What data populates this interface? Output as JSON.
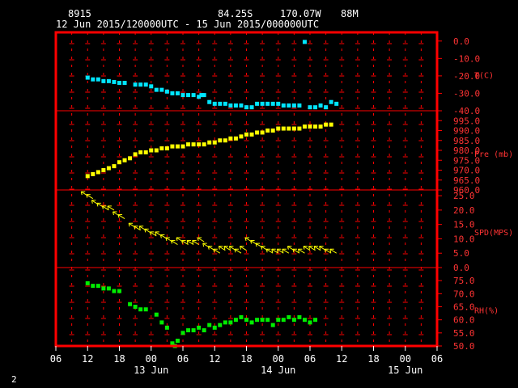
{
  "header": {
    "station_id": "8915",
    "latitude": "84.25S",
    "longitude": "170.07W",
    "elevation": "88M",
    "time_range": "12 Jun 2015/120000UTC - 15 Jun 2015/000000UTC"
  },
  "page_number": "2",
  "chart_data": {
    "type": "scatter",
    "x_unit": "hours since 12 Jun 2015 06 UTC",
    "x_range": [
      0,
      72
    ],
    "x_tick_labels": [
      "06",
      "12",
      "18",
      "00",
      "06",
      "12",
      "18",
      "00",
      "06",
      "12",
      "18",
      "00",
      "06"
    ],
    "date_labels": [
      {
        "x": 18,
        "label": "13 Jun"
      },
      {
        "x": 42,
        "label": "14 Jun"
      },
      {
        "x": 66,
        "label": "15 Jun"
      }
    ],
    "colors": {
      "frame": "#ff0000",
      "grid": "#ff0000",
      "temperature": "#00e5ff",
      "pressure": "#ffff00",
      "wind": "#ffff00",
      "rh": "#00ee00",
      "axis_text": "#ff3333",
      "tick_text": "#ffffff"
    },
    "panels": [
      {
        "name": "temperature",
        "label": "T(C)",
        "ylim": [
          -40,
          5
        ],
        "tick_values": [
          0,
          -10,
          -20,
          -30,
          -40
        ],
        "tick_labels": [
          "0.0",
          "-10.0",
          "-20.0",
          "-30.0",
          "-40.0"
        ],
        "points": [
          [
            6,
            -21
          ],
          [
            7,
            -22
          ],
          [
            8,
            -22
          ],
          [
            9,
            -23
          ],
          [
            10,
            -23
          ],
          [
            11,
            -23.5
          ],
          [
            12,
            -24
          ],
          [
            13,
            -24
          ],
          [
            15,
            -25
          ],
          [
            16,
            -25
          ],
          [
            17,
            -25
          ],
          [
            18,
            -26
          ],
          [
            19,
            -28
          ],
          [
            20,
            -28
          ],
          [
            21,
            -29
          ],
          [
            22,
            -30
          ],
          [
            23,
            -30
          ],
          [
            24,
            -31
          ],
          [
            25,
            -31
          ],
          [
            26,
            -31
          ],
          [
            27,
            -32
          ],
          [
            27.5,
            -31
          ],
          [
            28,
            -31
          ],
          [
            29,
            -35
          ],
          [
            30,
            -36
          ],
          [
            31,
            -36
          ],
          [
            32,
            -36
          ],
          [
            33,
            -37
          ],
          [
            34,
            -37
          ],
          [
            35,
            -37
          ],
          [
            36,
            -38
          ],
          [
            37,
            -38
          ],
          [
            38,
            -36
          ],
          [
            39,
            -36
          ],
          [
            40,
            -36
          ],
          [
            41,
            -36
          ],
          [
            42,
            -36
          ],
          [
            43,
            -37
          ],
          [
            44,
            -37
          ],
          [
            45,
            -37
          ],
          [
            46,
            -37
          ],
          [
            47,
            -0.5
          ],
          [
            48,
            -38
          ],
          [
            49,
            -38
          ],
          [
            50,
            -37
          ],
          [
            51,
            -38
          ],
          [
            52,
            -35
          ],
          [
            53,
            -36
          ]
        ]
      },
      {
        "name": "pressure",
        "label": "Pre (mb)",
        "ylim": [
          960,
          1000
        ],
        "tick_values": [
          995,
          990,
          985,
          980,
          975,
          970,
          965,
          960
        ],
        "tick_labels": [
          "995.0",
          "990.0",
          "985.0",
          "980.0",
          "975.0",
          "970.0",
          "965.0",
          "960.0"
        ],
        "points": [
          [
            6,
            967
          ],
          [
            7,
            968
          ],
          [
            8,
            969
          ],
          [
            9,
            970
          ],
          [
            10,
            971
          ],
          [
            11,
            972
          ],
          [
            12,
            974
          ],
          [
            13,
            975
          ],
          [
            14,
            976
          ],
          [
            15,
            978
          ],
          [
            16,
            979
          ],
          [
            17,
            979
          ],
          [
            18,
            980
          ],
          [
            19,
            980
          ],
          [
            20,
            981
          ],
          [
            21,
            981
          ],
          [
            22,
            982
          ],
          [
            23,
            982
          ],
          [
            24,
            982
          ],
          [
            25,
            983
          ],
          [
            26,
            983
          ],
          [
            27,
            983
          ],
          [
            28,
            983
          ],
          [
            29,
            984
          ],
          [
            30,
            984
          ],
          [
            31,
            985
          ],
          [
            32,
            985
          ],
          [
            33,
            986
          ],
          [
            34,
            986
          ],
          [
            35,
            987
          ],
          [
            36,
            988
          ],
          [
            37,
            988
          ],
          [
            38,
            989
          ],
          [
            39,
            989
          ],
          [
            40,
            990
          ],
          [
            41,
            990
          ],
          [
            42,
            991
          ],
          [
            43,
            991
          ],
          [
            44,
            991
          ],
          [
            45,
            991
          ],
          [
            46,
            991
          ],
          [
            47,
            992
          ],
          [
            48,
            992
          ],
          [
            49,
            992
          ],
          [
            50,
            992
          ],
          [
            51,
            993
          ],
          [
            52,
            993
          ]
        ]
      },
      {
        "name": "wind_speed",
        "label": "SPD(MPS)",
        "ylim": [
          0,
          27
        ],
        "tick_values": [
          25,
          20,
          15,
          10,
          5,
          0
        ],
        "tick_labels": [
          "25.0",
          "20.0",
          "15.0",
          "10.0",
          "5.0",
          "0.0"
        ],
        "points": [
          [
            6,
            25
          ],
          [
            7,
            24
          ],
          [
            8,
            22
          ],
          [
            9,
            21
          ],
          [
            10,
            20
          ],
          [
            11,
            20
          ],
          [
            12,
            18
          ],
          [
            13,
            17
          ],
          [
            15,
            14
          ],
          [
            16,
            13
          ],
          [
            17,
            13
          ],
          [
            18,
            12
          ],
          [
            19,
            11
          ],
          [
            20,
            11
          ],
          [
            21,
            10
          ],
          [
            22,
            9
          ],
          [
            23,
            8
          ],
          [
            24,
            9
          ],
          [
            25,
            8
          ],
          [
            26,
            8
          ],
          [
            27,
            8
          ],
          [
            28,
            9
          ],
          [
            29,
            7
          ],
          [
            30,
            6
          ],
          [
            31,
            5
          ],
          [
            32,
            6
          ],
          [
            33,
            6
          ],
          [
            34,
            6
          ],
          [
            35,
            5
          ],
          [
            36,
            6
          ],
          [
            37,
            9
          ],
          [
            38,
            8
          ],
          [
            39,
            7
          ],
          [
            40,
            6
          ],
          [
            41,
            5
          ],
          [
            42,
            5
          ],
          [
            43,
            5
          ],
          [
            44,
            5
          ],
          [
            45,
            6
          ],
          [
            46,
            5
          ],
          [
            47,
            5
          ],
          [
            48,
            6
          ],
          [
            49,
            6
          ],
          [
            50,
            6
          ],
          [
            51,
            6
          ],
          [
            52,
            5
          ],
          [
            53,
            5
          ]
        ]
      },
      {
        "name": "relative_humidity",
        "label": "RH(%)",
        "ylim": [
          50,
          80
        ],
        "tick_values": [
          75,
          70,
          65,
          60,
          55,
          50
        ],
        "tick_labels": [
          "75.0",
          "70.0",
          "65.0",
          "60.0",
          "55.0",
          "50.0"
        ],
        "points": [
          [
            6,
            74
          ],
          [
            7,
            73
          ],
          [
            8,
            73
          ],
          [
            9,
            72
          ],
          [
            10,
            72
          ],
          [
            11,
            71
          ],
          [
            12,
            71
          ],
          [
            14,
            66
          ],
          [
            15,
            65
          ],
          [
            16,
            64
          ],
          [
            17,
            64
          ],
          [
            19,
            62
          ],
          [
            20,
            59
          ],
          [
            21,
            57
          ],
          [
            22,
            51
          ],
          [
            22.5,
            50
          ],
          [
            23,
            52
          ],
          [
            24,
            55
          ],
          [
            25,
            56
          ],
          [
            26,
            56
          ],
          [
            27,
            57
          ],
          [
            28,
            56
          ],
          [
            29,
            58
          ],
          [
            30,
            57
          ],
          [
            31,
            58
          ],
          [
            32,
            59
          ],
          [
            33,
            59
          ],
          [
            34,
            60
          ],
          [
            35,
            61
          ],
          [
            36,
            60
          ],
          [
            37,
            59
          ],
          [
            38,
            60
          ],
          [
            39,
            60
          ],
          [
            40,
            60
          ],
          [
            41,
            58
          ],
          [
            42,
            60
          ],
          [
            43,
            60
          ],
          [
            44,
            61
          ],
          [
            45,
            60
          ],
          [
            46,
            61
          ],
          [
            47,
            60
          ],
          [
            48,
            59
          ],
          [
            49,
            60
          ]
        ]
      }
    ]
  }
}
